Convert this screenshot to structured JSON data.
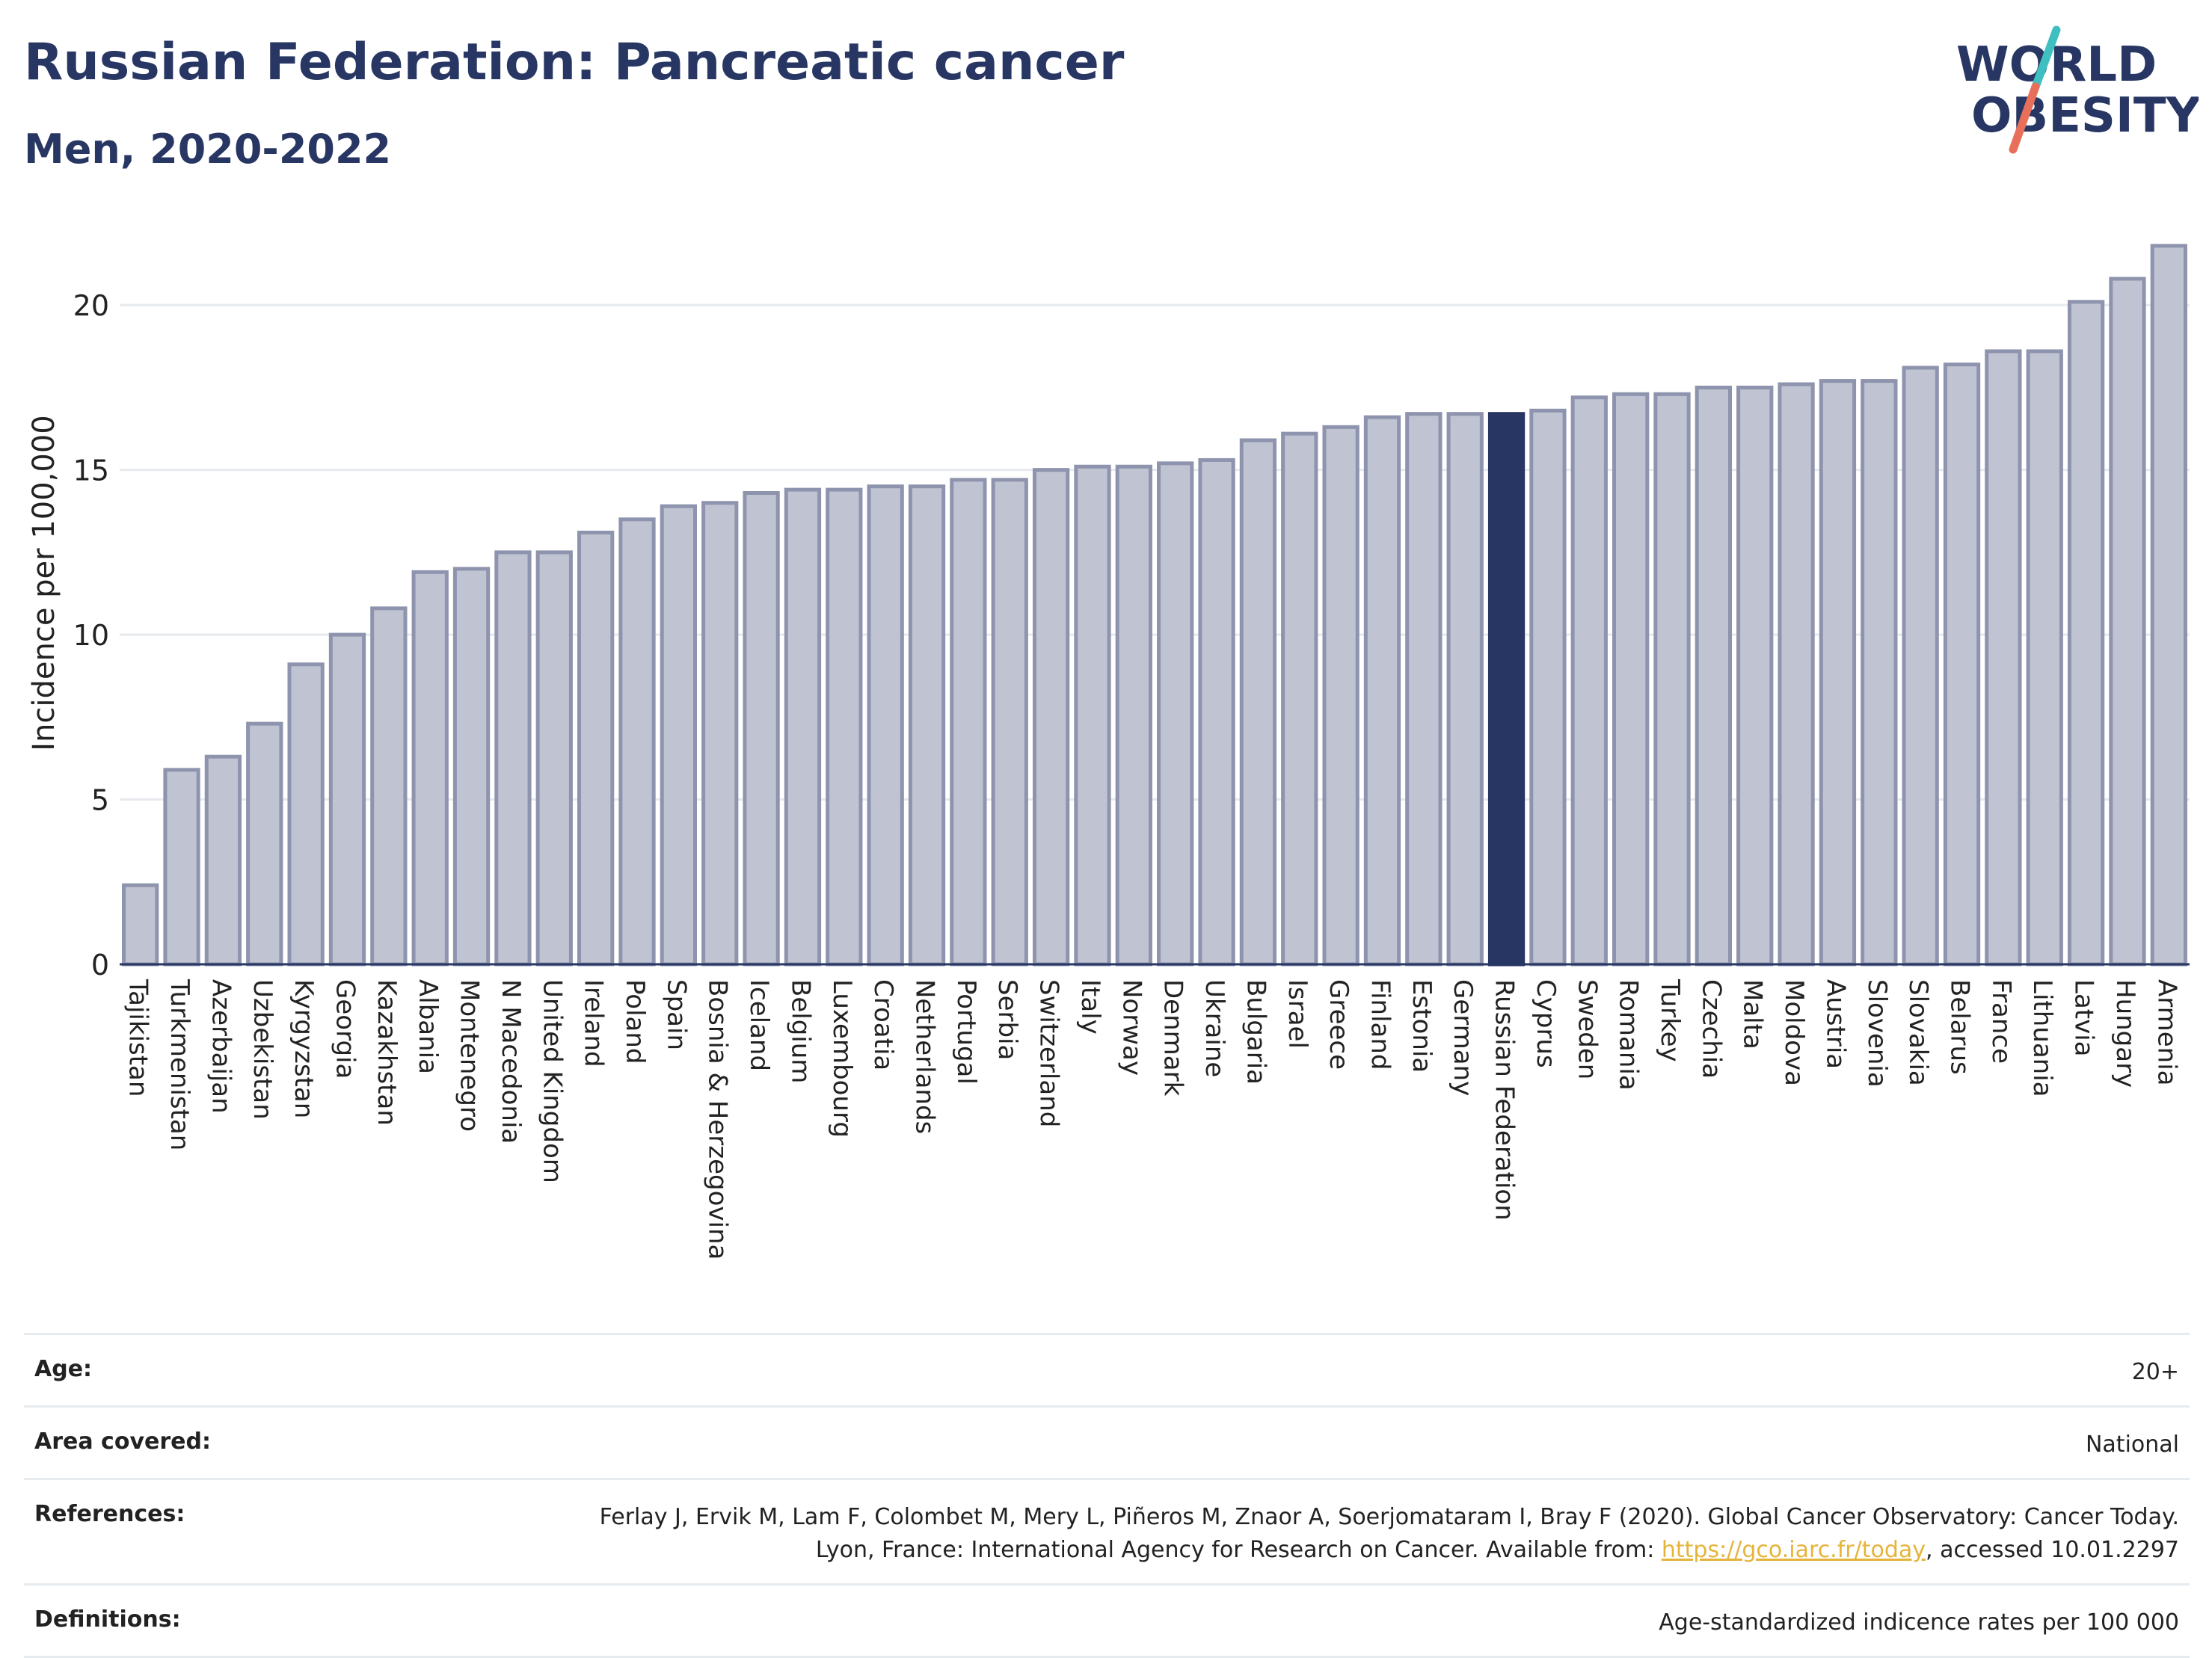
{
  "header": {
    "title": "Russian Federation: Pancreatic cancer",
    "subtitle": "Men, 2020-2022"
  },
  "logo": {
    "line1": "WORLD",
    "line2": "OBESITY"
  },
  "colors": {
    "highlight": "#283663",
    "bar_fill": "#bfc3d2",
    "bar_stroke": "#8e94ad",
    "accent_teal": "#3fbfbf",
    "accent_coral": "#e8705a",
    "link": "#e5b53b"
  },
  "chart_data": {
    "type": "bar",
    "title": "Russian Federation: Pancreatic cancer",
    "subtitle": "Men, 2020-2022",
    "xlabel": "",
    "ylabel": "Incidence per 100,000",
    "ylim": [
      0,
      22
    ],
    "yticks": [
      0,
      5,
      10,
      15,
      20
    ],
    "grid": true,
    "highlight": "Russian Federation",
    "categories": [
      "Tajikistan",
      "Turkmenistan",
      "Azerbaijan",
      "Uzbekistan",
      "Kyrgyzstan",
      "Georgia",
      "Kazakhstan",
      "Albania",
      "Montenegro",
      "N Macedonia",
      "United Kingdom",
      "Ireland",
      "Poland",
      "Spain",
      "Bosnia & Herzegovina",
      "Iceland",
      "Belgium",
      "Luxembourg",
      "Croatia",
      "Netherlands",
      "Portugal",
      "Serbia",
      "Switzerland",
      "Italy",
      "Norway",
      "Denmark",
      "Ukraine",
      "Bulgaria",
      "Israel",
      "Greece",
      "Finland",
      "Estonia",
      "Germany",
      "Russian Federation",
      "Cyprus",
      "Sweden",
      "Romania",
      "Turkey",
      "Czechia",
      "Malta",
      "Moldova",
      "Austria",
      "Slovenia",
      "Slovakia",
      "Belarus",
      "France",
      "Lithuania",
      "Latvia",
      "Hungary",
      "Armenia"
    ],
    "values": [
      2.4,
      5.9,
      6.3,
      7.3,
      9.1,
      10.0,
      10.8,
      11.9,
      12.0,
      12.5,
      12.5,
      13.1,
      13.5,
      13.9,
      14.0,
      14.3,
      14.4,
      14.4,
      14.5,
      14.5,
      14.7,
      14.7,
      15.0,
      15.1,
      15.1,
      15.2,
      15.3,
      15.9,
      16.1,
      16.3,
      16.6,
      16.7,
      16.7,
      16.7,
      16.8,
      17.2,
      17.3,
      17.3,
      17.5,
      17.5,
      17.6,
      17.7,
      17.7,
      18.1,
      18.2,
      18.6,
      18.6,
      20.1,
      20.8,
      21.8
    ]
  },
  "info": {
    "age_label": "Age:",
    "age_value": "20+",
    "area_label": "Area covered:",
    "area_value": "National",
    "references_label": "References:",
    "references_text": "Ferlay J, Ervik M, Lam F, Colombet M, Mery L, Piñeros M, Znaor A, Soerjomataram I, Bray F (2020). Global Cancer Observatory: Cancer Today. Lyon, France: International Agency for Research on Cancer. Available from: ",
    "references_link": "https://gco.iarc.fr/today",
    "references_suffix": ", accessed 10.01.2297",
    "definitions_label": "Definitions:",
    "definitions_value": "Age-standardized indicence rates per 100 000"
  }
}
